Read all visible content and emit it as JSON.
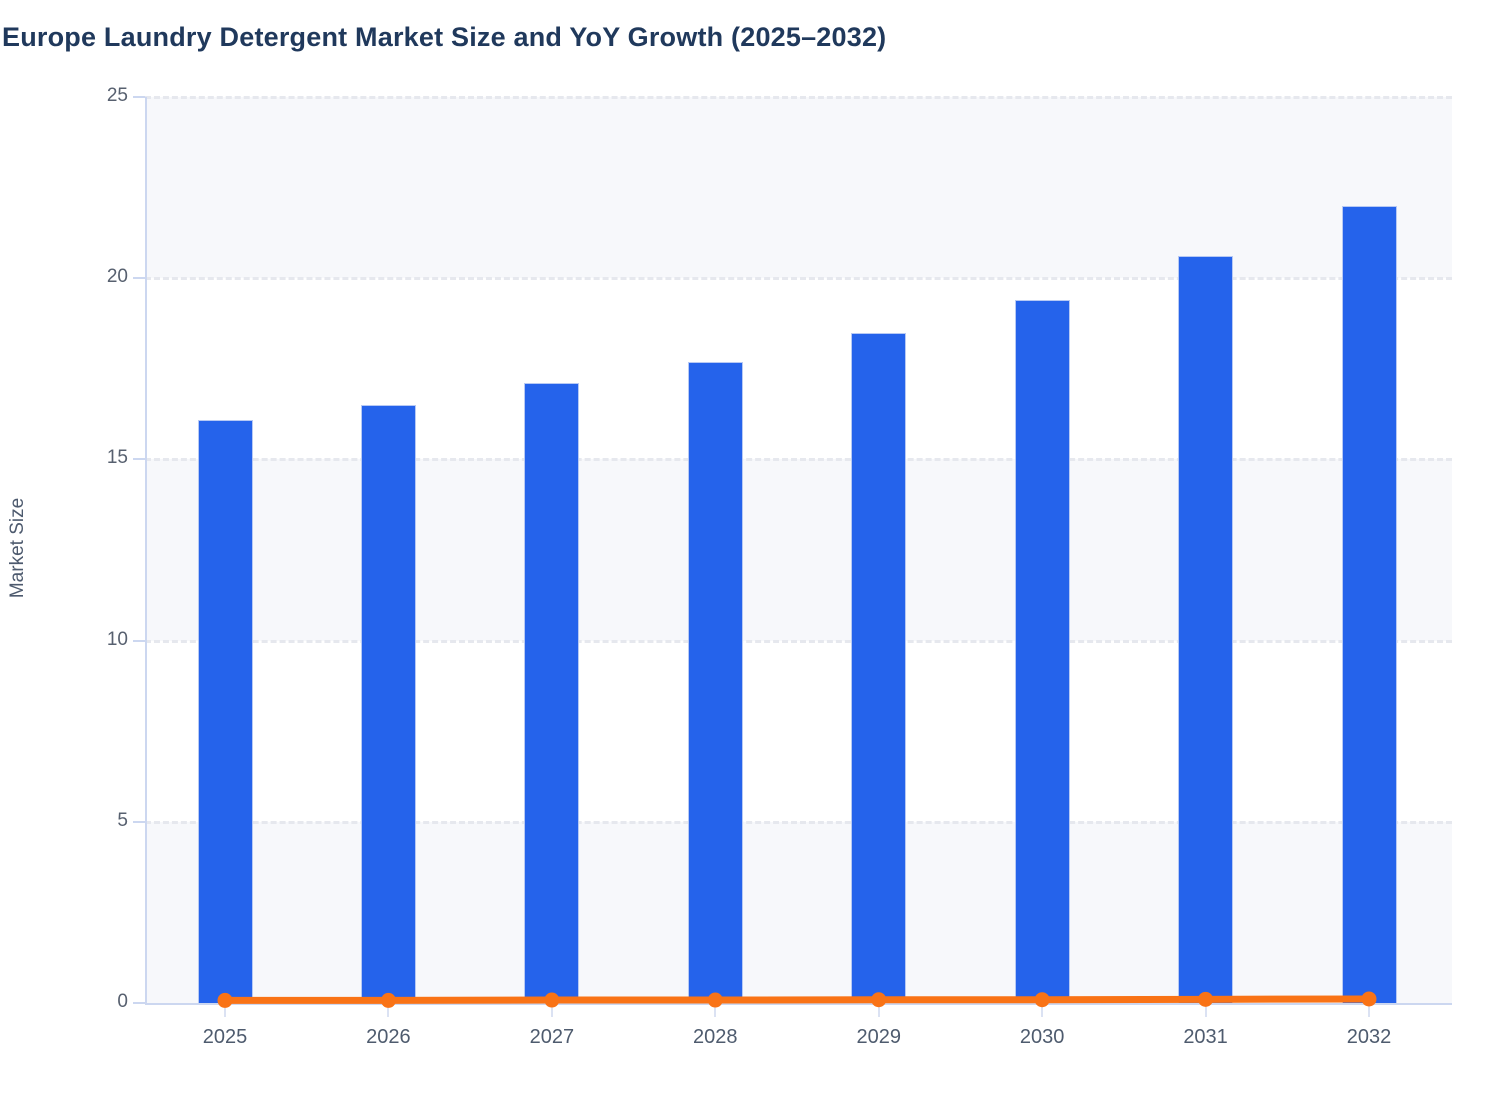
{
  "title": "Europe Laundry Detergent Market Size and YoY Growth (2025–2032)",
  "colors": {
    "bar": "#2563eb",
    "bar_edge": "#b7c9f4",
    "line": "#f97316",
    "grid": "#e6e8ee",
    "axis": "#ccd7f0",
    "band": "#f7f8fb",
    "tick_text": "#57606f",
    "xtick_text": "#4e5b6e",
    "title_text": "#20395c",
    "axis_title_text": "#4d5a6e"
  },
  "chart_data": {
    "type": "bar",
    "title": "Europe Laundry Detergent Market Size and YoY Growth (2025–2032)",
    "categories": [
      "2025",
      "2026",
      "2027",
      "2028",
      "2029",
      "2030",
      "2031",
      "2032"
    ],
    "series": [
      {
        "name": "Market Size",
        "type": "bar",
        "values": [
          16.1,
          16.5,
          17.1,
          17.7,
          18.5,
          19.4,
          20.6,
          22.0
        ]
      },
      {
        "name": "YoY Growth",
        "type": "line",
        "values": [
          0.03,
          0.03,
          0.04,
          0.04,
          0.05,
          0.05,
          0.06,
          0.07
        ]
      }
    ],
    "xlabel": "",
    "ylabel": "Market Size",
    "ylim": [
      0,
      25
    ],
    "yticks": [
      0,
      5,
      10,
      15,
      20,
      25
    ],
    "grid": "horizontal dashed gridlines at each ytick",
    "plot_bands": "alternating light horizontal bands (0-5, 10-15, 20-25 shaded)",
    "legend": "none"
  }
}
